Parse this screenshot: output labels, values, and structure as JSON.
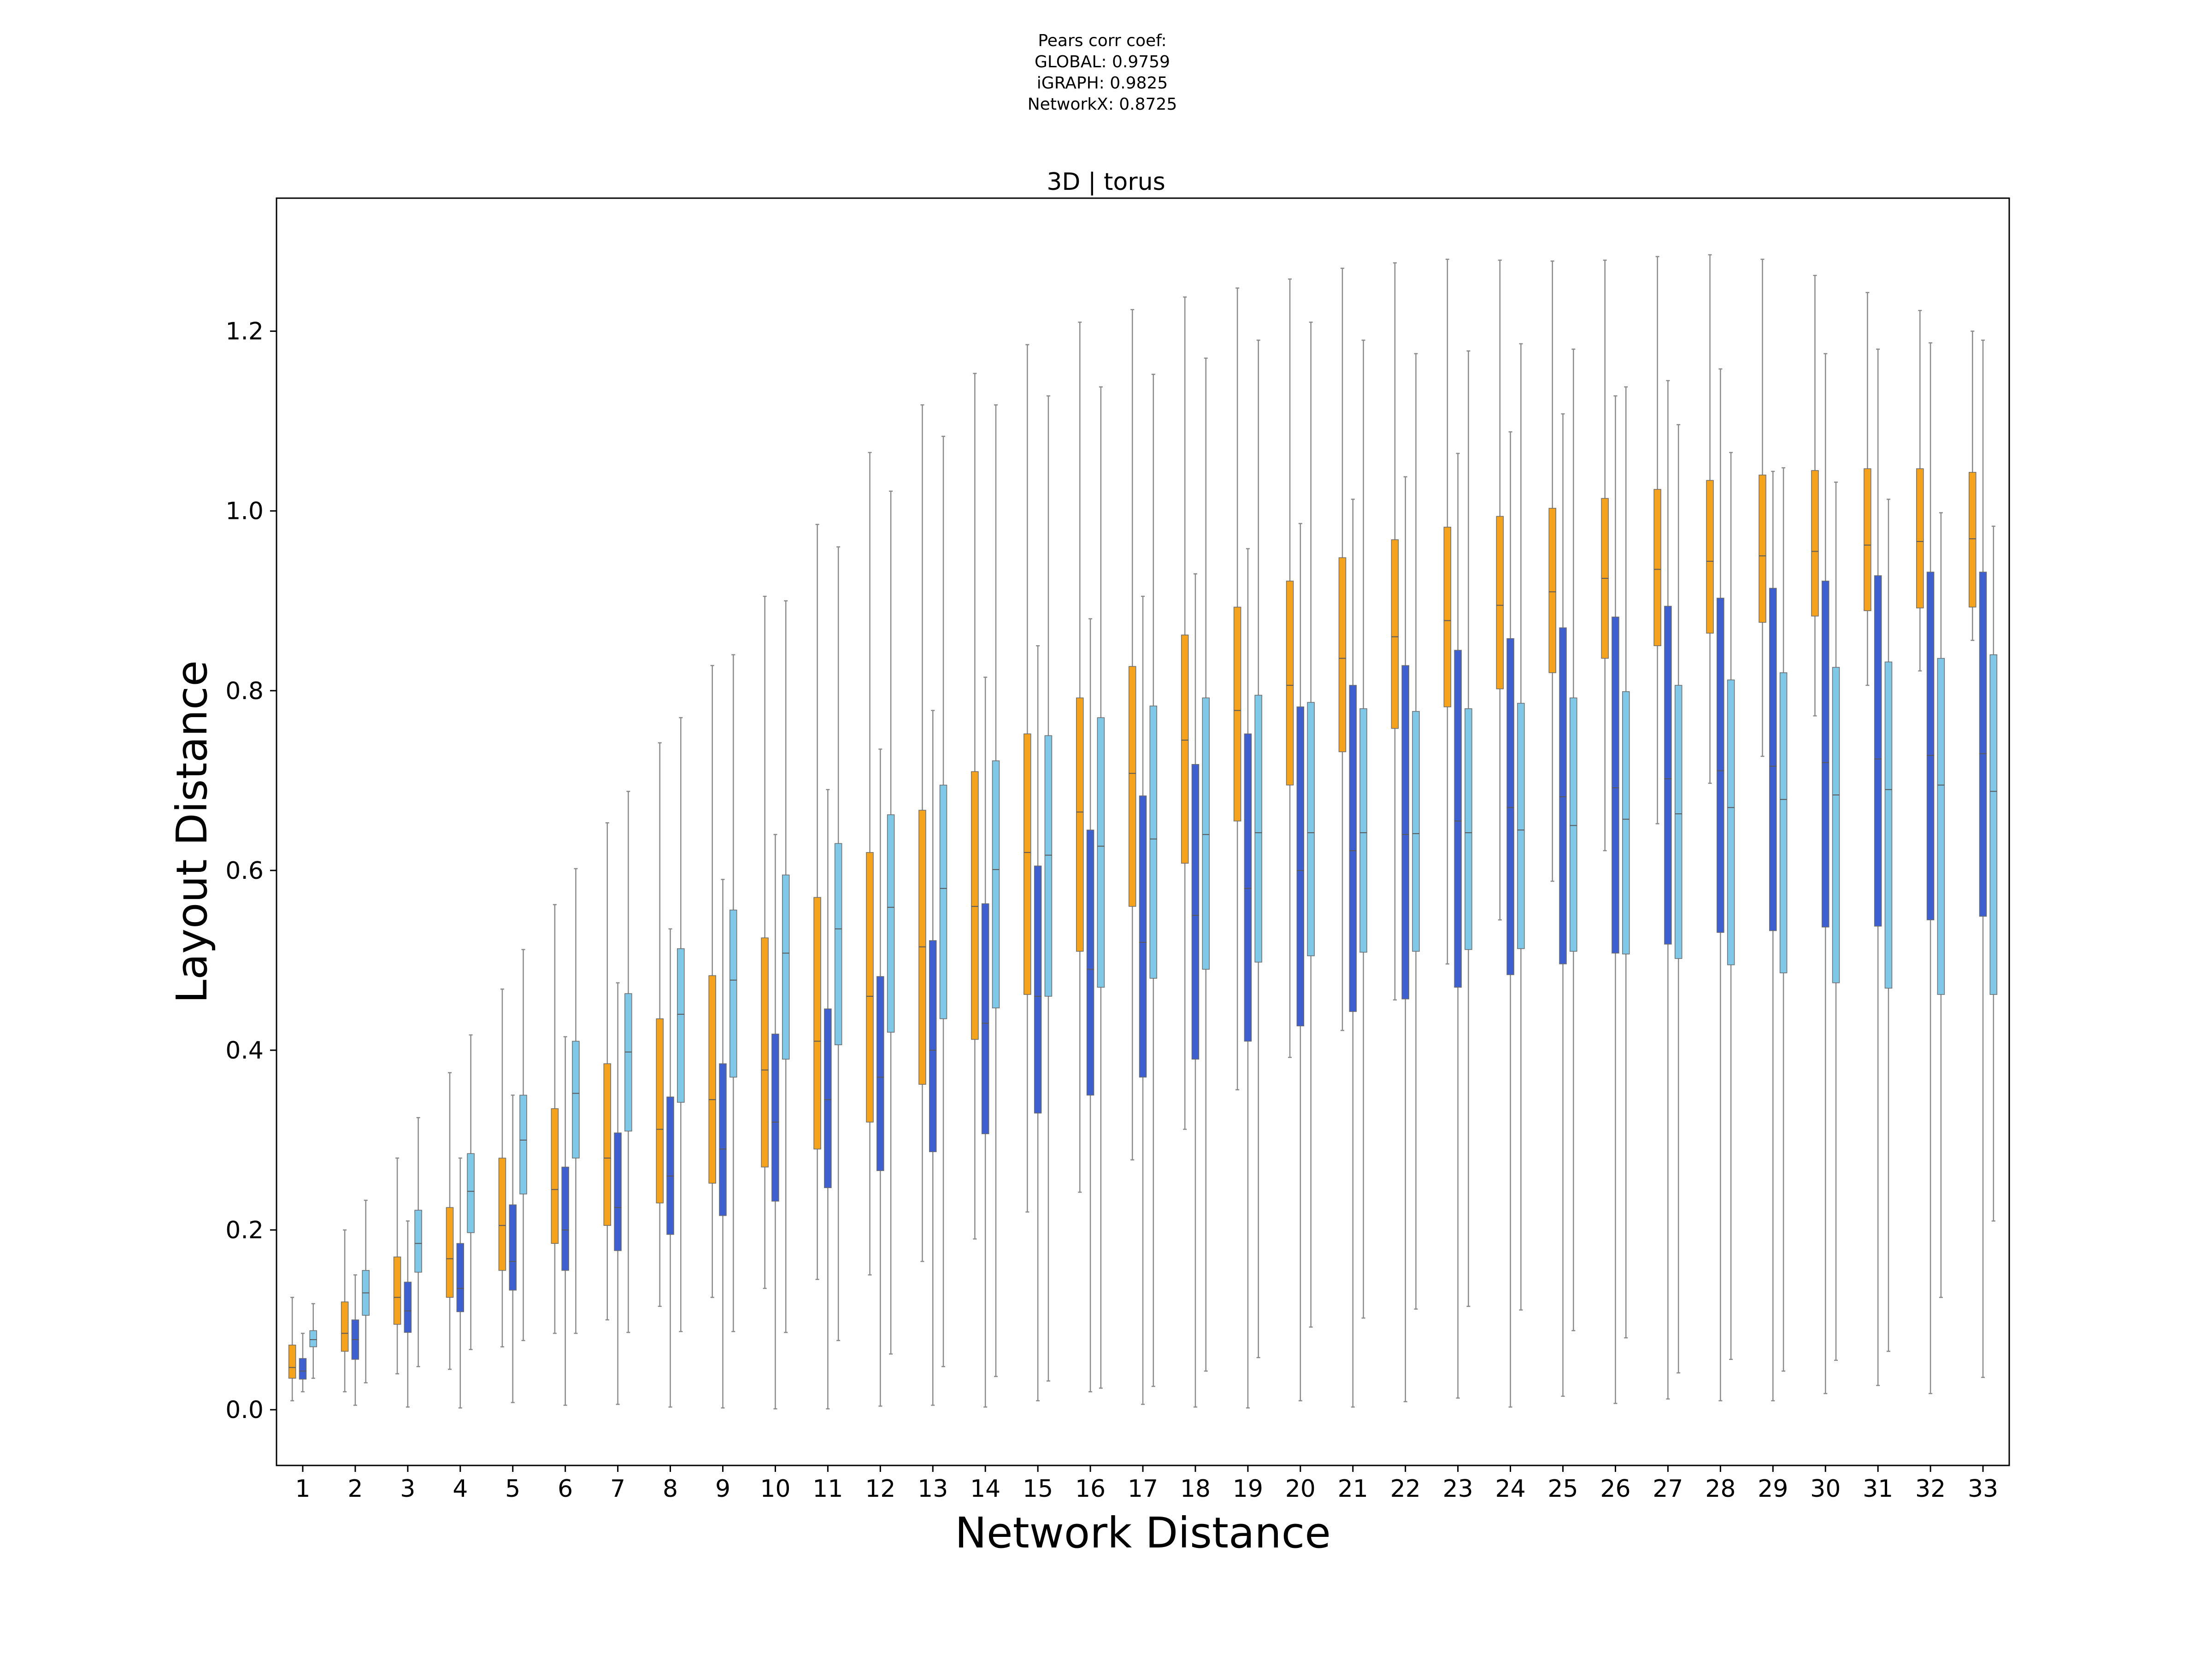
{
  "chart_data": {
    "type": "box",
    "suptitle_lines": [
      "Pears corr coef:",
      "GLOBAL: 0.9759",
      "iGRAPH: 0.9825",
      "NetworkX: 0.8725"
    ],
    "title": "3D | torus",
    "xlabel": "Network Distance",
    "ylabel": "Layout Distance",
    "xlim": [
      0.5,
      33.5
    ],
    "ylim": [
      -0.062,
      1.348
    ],
    "yticks": [
      0.0,
      0.2,
      0.4,
      0.6,
      0.8,
      1.0,
      1.2
    ],
    "ytick_labels": [
      "0.0",
      "0.2",
      "0.4",
      "0.6",
      "0.8",
      "1.0",
      "1.2"
    ],
    "categories": [
      "1",
      "2",
      "3",
      "4",
      "5",
      "6",
      "7",
      "8",
      "9",
      "10",
      "11",
      "12",
      "13",
      "14",
      "15",
      "16",
      "17",
      "18",
      "19",
      "20",
      "21",
      "22",
      "23",
      "24",
      "25",
      "26",
      "27",
      "28",
      "29",
      "30",
      "31",
      "32",
      "33"
    ],
    "grid": false,
    "legend": "none",
    "series": [
      {
        "color": "#f5a21d",
        "boxes": [
          [
            0.01,
            0.035,
            0.047,
            0.072,
            0.125
          ],
          [
            0.02,
            0.065,
            0.085,
            0.12,
            0.2
          ],
          [
            0.04,
            0.095,
            0.125,
            0.17,
            0.28
          ],
          [
            0.045,
            0.125,
            0.168,
            0.225,
            0.375
          ],
          [
            0.07,
            0.155,
            0.205,
            0.28,
            0.468
          ],
          [
            0.085,
            0.185,
            0.245,
            0.335,
            0.562
          ],
          [
            0.1,
            0.205,
            0.28,
            0.385,
            0.653
          ],
          [
            0.115,
            0.23,
            0.312,
            0.435,
            0.742
          ],
          [
            0.125,
            0.252,
            0.345,
            0.483,
            0.828
          ],
          [
            0.135,
            0.27,
            0.378,
            0.525,
            0.905
          ],
          [
            0.145,
            0.29,
            0.41,
            0.57,
            0.985
          ],
          [
            0.15,
            0.32,
            0.46,
            0.62,
            1.065
          ],
          [
            0.165,
            0.362,
            0.515,
            0.667,
            1.118
          ],
          [
            0.19,
            0.412,
            0.56,
            0.71,
            1.153
          ],
          [
            0.22,
            0.462,
            0.62,
            0.752,
            1.185
          ],
          [
            0.242,
            0.51,
            0.665,
            0.792,
            1.21
          ],
          [
            0.278,
            0.56,
            0.708,
            0.827,
            1.224
          ],
          [
            0.312,
            0.608,
            0.745,
            0.862,
            1.238
          ],
          [
            0.356,
            0.655,
            0.778,
            0.893,
            1.248
          ],
          [
            0.392,
            0.695,
            0.806,
            0.922,
            1.258
          ],
          [
            0.422,
            0.732,
            0.836,
            0.948,
            1.27
          ],
          [
            0.456,
            0.758,
            0.86,
            0.968,
            1.276
          ],
          [
            0.496,
            0.782,
            0.878,
            0.982,
            1.28
          ],
          [
            0.545,
            0.802,
            0.895,
            0.994,
            1.279
          ],
          [
            0.588,
            0.82,
            0.91,
            1.003,
            1.278
          ],
          [
            0.622,
            0.836,
            0.925,
            1.014,
            1.279
          ],
          [
            0.652,
            0.85,
            0.935,
            1.024,
            1.283
          ],
          [
            0.697,
            0.864,
            0.944,
            1.034,
            1.285
          ],
          [
            0.727,
            0.876,
            0.95,
            1.04,
            1.28
          ],
          [
            0.772,
            0.883,
            0.955,
            1.045,
            1.262
          ],
          [
            0.806,
            0.889,
            0.962,
            1.047,
            1.243
          ],
          [
            0.822,
            0.892,
            0.966,
            1.047,
            1.223
          ],
          [
            0.856,
            0.893,
            0.969,
            1.043,
            1.2
          ]
        ]
      },
      {
        "color": "#3e5fcf",
        "boxes": [
          [
            0.02,
            0.034,
            0.043,
            0.057,
            0.085
          ],
          [
            0.005,
            0.056,
            0.078,
            0.1,
            0.15
          ],
          [
            0.003,
            0.086,
            0.11,
            0.142,
            0.21
          ],
          [
            0.002,
            0.109,
            0.135,
            0.185,
            0.28
          ],
          [
            0.008,
            0.133,
            0.165,
            0.228,
            0.35
          ],
          [
            0.005,
            0.155,
            0.2,
            0.27,
            0.415
          ],
          [
            0.006,
            0.177,
            0.225,
            0.308,
            0.475
          ],
          [
            0.003,
            0.195,
            0.26,
            0.348,
            0.535
          ],
          [
            0.002,
            0.216,
            0.29,
            0.385,
            0.59
          ],
          [
            0.001,
            0.232,
            0.32,
            0.418,
            0.64
          ],
          [
            0.001,
            0.247,
            0.345,
            0.446,
            0.69
          ],
          [
            0.004,
            0.266,
            0.37,
            0.482,
            0.735
          ],
          [
            0.005,
            0.287,
            0.4,
            0.522,
            0.778
          ],
          [
            0.003,
            0.307,
            0.43,
            0.563,
            0.815
          ],
          [
            0.01,
            0.33,
            0.46,
            0.605,
            0.85
          ],
          [
            0.02,
            0.35,
            0.49,
            0.645,
            0.88
          ],
          [
            0.006,
            0.37,
            0.52,
            0.683,
            0.905
          ],
          [
            0.003,
            0.39,
            0.55,
            0.718,
            0.93
          ],
          [
            0.002,
            0.41,
            0.58,
            0.752,
            0.958
          ],
          [
            0.01,
            0.427,
            0.6,
            0.782,
            0.986
          ],
          [
            0.003,
            0.443,
            0.622,
            0.806,
            1.013
          ],
          [
            0.009,
            0.457,
            0.64,
            0.828,
            1.038
          ],
          [
            0.013,
            0.47,
            0.655,
            0.845,
            1.064
          ],
          [
            0.003,
            0.484,
            0.67,
            0.858,
            1.088
          ],
          [
            0.015,
            0.496,
            0.682,
            0.87,
            1.108
          ],
          [
            0.007,
            0.508,
            0.692,
            0.882,
            1.128
          ],
          [
            0.012,
            0.518,
            0.702,
            0.894,
            1.145
          ],
          [
            0.01,
            0.531,
            0.711,
            0.903,
            1.158
          ],
          [
            0.01,
            0.533,
            0.716,
            0.914,
            1.044
          ],
          [
            0.018,
            0.537,
            0.72,
            0.922,
            1.175
          ],
          [
            0.027,
            0.538,
            0.724,
            0.928,
            1.18
          ],
          [
            0.018,
            0.545,
            0.728,
            0.932,
            1.187
          ],
          [
            0.036,
            0.549,
            0.73,
            0.932,
            1.19
          ]
        ]
      },
      {
        "color": "#7fc8e8",
        "boxes": [
          [
            0.035,
            0.07,
            0.078,
            0.088,
            0.118
          ],
          [
            0.03,
            0.105,
            0.13,
            0.155,
            0.233
          ],
          [
            0.048,
            0.153,
            0.185,
            0.222,
            0.325
          ],
          [
            0.067,
            0.197,
            0.243,
            0.285,
            0.417
          ],
          [
            0.077,
            0.24,
            0.3,
            0.35,
            0.512
          ],
          [
            0.085,
            0.28,
            0.352,
            0.41,
            0.602
          ],
          [
            0.086,
            0.31,
            0.398,
            0.463,
            0.688
          ],
          [
            0.087,
            0.342,
            0.44,
            0.513,
            0.77
          ],
          [
            0.087,
            0.37,
            0.478,
            0.556,
            0.84
          ],
          [
            0.086,
            0.39,
            0.508,
            0.595,
            0.9
          ],
          [
            0.077,
            0.406,
            0.535,
            0.63,
            0.96
          ],
          [
            0.062,
            0.42,
            0.559,
            0.662,
            1.022
          ],
          [
            0.048,
            0.435,
            0.58,
            0.695,
            1.083
          ],
          [
            0.037,
            0.447,
            0.601,
            0.722,
            1.118
          ],
          [
            0.032,
            0.46,
            0.617,
            0.75,
            1.128
          ],
          [
            0.024,
            0.47,
            0.627,
            0.77,
            1.138
          ],
          [
            0.026,
            0.48,
            0.635,
            0.783,
            1.152
          ],
          [
            0.043,
            0.49,
            0.64,
            0.792,
            1.17
          ],
          [
            0.058,
            0.498,
            0.642,
            0.795,
            1.19
          ],
          [
            0.092,
            0.505,
            0.642,
            0.787,
            1.21
          ],
          [
            0.102,
            0.509,
            0.642,
            0.78,
            1.19
          ],
          [
            0.112,
            0.51,
            0.641,
            0.777,
            1.175
          ],
          [
            0.115,
            0.512,
            0.642,
            0.78,
            1.178
          ],
          [
            0.111,
            0.513,
            0.645,
            0.786,
            1.186
          ],
          [
            0.088,
            0.51,
            0.65,
            0.792,
            1.18
          ],
          [
            0.08,
            0.507,
            0.657,
            0.799,
            1.138
          ],
          [
            0.041,
            0.502,
            0.663,
            0.806,
            1.096
          ],
          [
            0.056,
            0.495,
            0.67,
            0.812,
            1.065
          ],
          [
            0.043,
            0.486,
            0.679,
            0.82,
            1.048
          ],
          [
            0.055,
            0.475,
            0.684,
            0.826,
            1.032
          ],
          [
            0.065,
            0.469,
            0.69,
            0.832,
            1.013
          ],
          [
            0.125,
            0.462,
            0.695,
            0.836,
            0.998
          ],
          [
            0.21,
            0.462,
            0.688,
            0.84,
            0.983
          ]
        ]
      }
    ]
  }
}
